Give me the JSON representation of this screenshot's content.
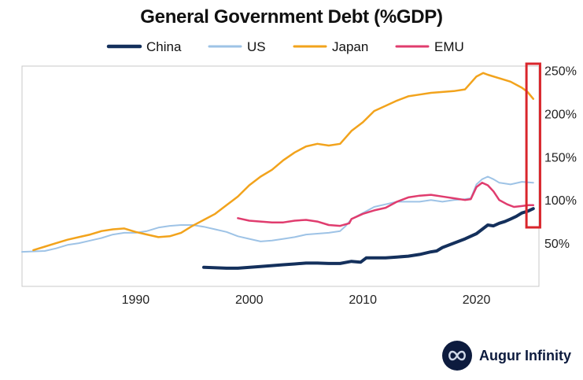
{
  "brand": {
    "name": "Augur Infinity",
    "logo_icon": "infinity-icon"
  },
  "colors": {
    "China": "#14305c",
    "US": "#9ec3e6",
    "Japan": "#f2a31c",
    "EMU": "#e03c6e",
    "highlight": "#d9262c",
    "axis": "#c8c8c8"
  },
  "chart_data": {
    "type": "line",
    "title": "General Government Debt (%GDP)",
    "xlabel": "",
    "ylabel": "",
    "xlim": [
      1980,
      2025.5
    ],
    "ylim": [
      0,
      255
    ],
    "x_ticks": [
      1990,
      2000,
      2010,
      2020
    ],
    "y_ticks": [
      50,
      100,
      150,
      200,
      250
    ],
    "y_tick_labels": [
      "50%",
      "100%",
      "150%",
      "200%",
      "250%"
    ],
    "y_axis_side": "right",
    "grid": false,
    "legend": {
      "position": "top",
      "entries": [
        "China",
        "US",
        "Japan",
        "EMU"
      ]
    },
    "annotations": [
      {
        "type": "highlight-box",
        "x_range": [
          2024.4,
          2025.6
        ],
        "description": "latest period"
      }
    ],
    "series": [
      {
        "name": "China",
        "width": 4,
        "points": [
          [
            1996,
            22
          ],
          [
            1998,
            21
          ],
          [
            1999,
            21
          ],
          [
            2001,
            23
          ],
          [
            2003,
            25
          ],
          [
            2004,
            26
          ],
          [
            2005,
            27
          ],
          [
            2006,
            27
          ],
          [
            2007,
            26.5
          ],
          [
            2008,
            26.5
          ],
          [
            2009,
            29
          ],
          [
            2009.8,
            28
          ],
          [
            2010.3,
            33
          ],
          [
            2011,
            33
          ],
          [
            2012,
            33
          ],
          [
            2013,
            34
          ],
          [
            2014,
            35
          ],
          [
            2015,
            37
          ],
          [
            2016,
            40
          ],
          [
            2016.5,
            41
          ],
          [
            2017,
            45
          ],
          [
            2018,
            50
          ],
          [
            2019,
            55
          ],
          [
            2020,
            61
          ],
          [
            2020.5,
            66
          ],
          [
            2021,
            71
          ],
          [
            2021.5,
            70
          ],
          [
            2022,
            73
          ],
          [
            2022.5,
            75
          ],
          [
            2023,
            78
          ],
          [
            2023.5,
            81
          ],
          [
            2024,
            85
          ],
          [
            2024.5,
            87
          ],
          [
            2025,
            90
          ]
        ]
      },
      {
        "name": "US",
        "width": 2,
        "points": [
          [
            1980,
            40
          ],
          [
            1982,
            41
          ],
          [
            1983,
            44
          ],
          [
            1984,
            48
          ],
          [
            1985,
            50
          ],
          [
            1986,
            53
          ],
          [
            1987,
            56
          ],
          [
            1988,
            60
          ],
          [
            1989,
            62
          ],
          [
            1990,
            62
          ],
          [
            1991,
            64
          ],
          [
            1992,
            68
          ],
          [
            1993,
            70
          ],
          [
            1994,
            71
          ],
          [
            1995,
            71
          ],
          [
            1996,
            69
          ],
          [
            1997,
            66
          ],
          [
            1998,
            63
          ],
          [
            1999,
            58
          ],
          [
            2000,
            55
          ],
          [
            2001,
            52
          ],
          [
            2002,
            53
          ],
          [
            2003,
            55
          ],
          [
            2004,
            57
          ],
          [
            2005,
            60
          ],
          [
            2006,
            61
          ],
          [
            2007,
            62
          ],
          [
            2008,
            64
          ],
          [
            2008.5,
            70
          ],
          [
            2009,
            78
          ],
          [
            2010,
            85
          ],
          [
            2011,
            92
          ],
          [
            2012,
            95
          ],
          [
            2013,
            98
          ],
          [
            2014,
            98
          ],
          [
            2015,
            98
          ],
          [
            2016,
            100
          ],
          [
            2017,
            98
          ],
          [
            2018,
            100
          ],
          [
            2019,
            101
          ],
          [
            2019.5,
            102
          ],
          [
            2020,
            118
          ],
          [
            2020.5,
            124
          ],
          [
            2021,
            127
          ],
          [
            2021.5,
            124
          ],
          [
            2022,
            120
          ],
          [
            2023,
            118
          ],
          [
            2024,
            121
          ],
          [
            2025,
            120
          ]
        ]
      },
      {
        "name": "Japan",
        "width": 2.5,
        "points": [
          [
            1981,
            42
          ],
          [
            1982,
            46
          ],
          [
            1983,
            50
          ],
          [
            1984,
            54
          ],
          [
            1985,
            57
          ],
          [
            1986,
            60
          ],
          [
            1987,
            64
          ],
          [
            1988,
            66
          ],
          [
            1989,
            67
          ],
          [
            1990,
            63
          ],
          [
            1991,
            60
          ],
          [
            1992,
            57
          ],
          [
            1993,
            58
          ],
          [
            1994,
            62
          ],
          [
            1995,
            70
          ],
          [
            1996,
            77
          ],
          [
            1997,
            84
          ],
          [
            1998,
            94
          ],
          [
            1999,
            104
          ],
          [
            2000,
            117
          ],
          [
            2001,
            127
          ],
          [
            2002,
            135
          ],
          [
            2003,
            146
          ],
          [
            2004,
            155
          ],
          [
            2005,
            162
          ],
          [
            2006,
            165
          ],
          [
            2007,
            163
          ],
          [
            2008,
            165
          ],
          [
            2009,
            180
          ],
          [
            2010,
            190
          ],
          [
            2011,
            203
          ],
          [
            2012,
            209
          ],
          [
            2013,
            215
          ],
          [
            2014,
            220
          ],
          [
            2015,
            222
          ],
          [
            2016,
            224
          ],
          [
            2017,
            225
          ],
          [
            2018,
            226
          ],
          [
            2019,
            228
          ],
          [
            2020,
            243
          ],
          [
            2020.6,
            247
          ],
          [
            2021,
            245
          ],
          [
            2022,
            241
          ],
          [
            2023,
            237
          ],
          [
            2024,
            230
          ],
          [
            2024.5,
            225
          ],
          [
            2025,
            217
          ]
        ]
      },
      {
        "name": "EMU",
        "width": 2.5,
        "points": [
          [
            1999,
            79
          ],
          [
            2000,
            76
          ],
          [
            2001,
            75
          ],
          [
            2002,
            74
          ],
          [
            2003,
            74
          ],
          [
            2004,
            76
          ],
          [
            2005,
            77
          ],
          [
            2006,
            75
          ],
          [
            2007,
            71
          ],
          [
            2008,
            70
          ],
          [
            2008.8,
            73
          ],
          [
            2009,
            78
          ],
          [
            2010,
            84
          ],
          [
            2011,
            88
          ],
          [
            2012,
            91
          ],
          [
            2013,
            98
          ],
          [
            2014,
            103
          ],
          [
            2015,
            105
          ],
          [
            2016,
            106
          ],
          [
            2017,
            104
          ],
          [
            2018,
            102
          ],
          [
            2019,
            100
          ],
          [
            2019.5,
            101
          ],
          [
            2020,
            115
          ],
          [
            2020.5,
            120
          ],
          [
            2021,
            117
          ],
          [
            2021.5,
            110
          ],
          [
            2022,
            100
          ],
          [
            2022.7,
            95
          ],
          [
            2023.3,
            92
          ],
          [
            2024,
            93
          ],
          [
            2024.6,
            94
          ],
          [
            2025,
            94
          ]
        ]
      }
    ]
  }
}
